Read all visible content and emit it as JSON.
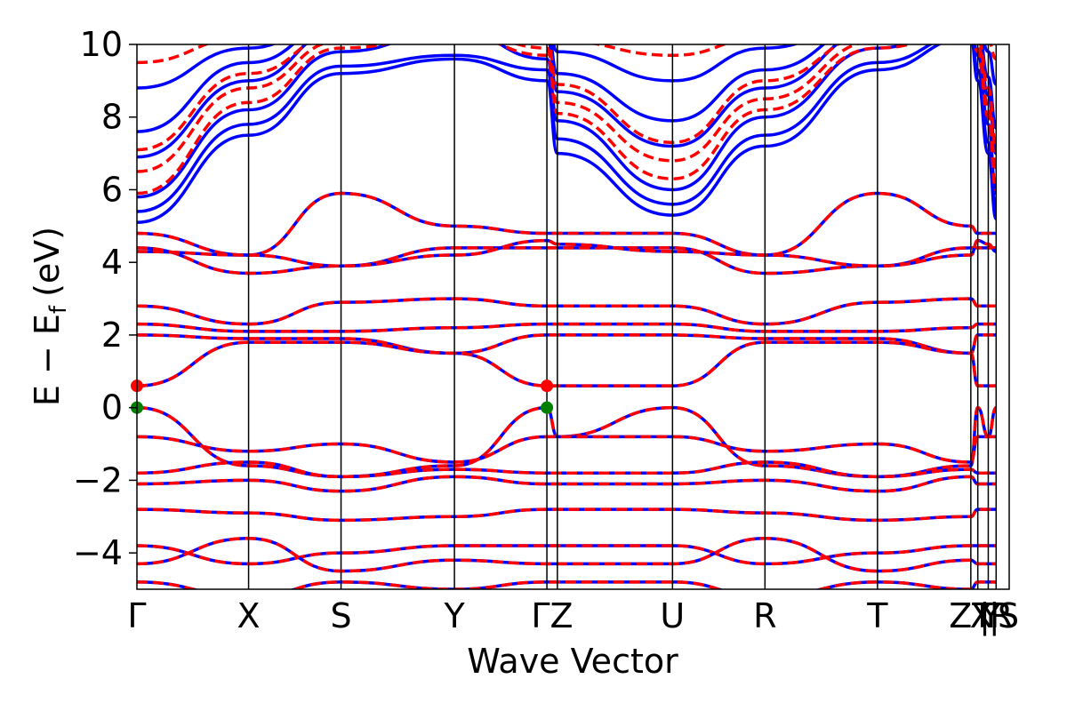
{
  "chart_data": {
    "type": "line",
    "xlabel": "Wave Vector",
    "ylabel": "E − E",
    "ylabel_subscript": "f",
    "ylabel_unit": "(eV)",
    "ylim": [
      -5,
      10
    ],
    "y_ticks": [
      -4,
      -2,
      0,
      2,
      4,
      6,
      8,
      10
    ],
    "y_tick_labels": [
      "−4",
      "−2",
      "0",
      "2",
      "4",
      "6",
      "8",
      "10"
    ],
    "k_path_ticks": [
      {
        "label": "Γ",
        "x": 0.0
      },
      {
        "label": "X",
        "x": 0.128
      },
      {
        "label": "S",
        "x": 0.234
      },
      {
        "label": "Y",
        "x": 0.364
      },
      {
        "label": "Γ",
        "x": 0.47
      },
      {
        "label": "Z",
        "x": 0.482
      },
      {
        "label": "U",
        "x": 0.614
      },
      {
        "label": "R",
        "x": 0.72
      },
      {
        "label": "T",
        "x": 0.849
      },
      {
        "label": "Z",
        "x": 0.956
      },
      {
        "label": "Y",
        "x": 0.956
      },
      {
        "label": "T",
        "x": 0.964
      },
      {
        "label": "U",
        "x": 0.964
      },
      {
        "label": "X",
        "x": 0.976
      },
      {
        "label": "S",
        "x": 0.976
      },
      {
        "label": "R",
        "x": 0.985
      },
      {
        "label": "S",
        "x": 0.985
      }
    ],
    "k_path_labels": [
      {
        "text": "Γ",
        "x": 0.0
      },
      {
        "text": "X",
        "x": 0.128
      },
      {
        "text": "S",
        "x": 0.234
      },
      {
        "text": "Y",
        "x": 0.364
      },
      {
        "text": "ΓZ",
        "x": 0.476
      },
      {
        "text": "U",
        "x": 0.614
      },
      {
        "text": "R",
        "x": 0.72
      },
      {
        "text": "T",
        "x": 0.849
      },
      {
        "text": "ZT",
        "x": 0.956
      },
      {
        "text": "X",
        "x": 0.968
      },
      {
        "text": "|",
        "x": 0.972
      },
      {
        "text": "Y",
        "x": 0.979
      },
      {
        "text": "|",
        "x": 0.983
      },
      {
        "text": "R",
        "x": 0.991
      },
      {
        "text": "S",
        "x": 0.999
      }
    ],
    "series_colors": {
      "solid": "#0000ff",
      "dashed": "#ff0000"
    },
    "markers": [
      {
        "x": 0.0,
        "y": 0.6,
        "color": "#ff0000"
      },
      {
        "x": 0.0,
        "y": 0.0,
        "color": "#008000"
      },
      {
        "x": 0.47,
        "y": 0.6,
        "color": "#ff0000"
      },
      {
        "x": 0.47,
        "y": 0.0,
        "color": "#008000"
      }
    ],
    "bands": [
      {
        "y": [
          5.1,
          7.5,
          9.2,
          9.6,
          9.0,
          7.0,
          5.3,
          7.2,
          9.3,
          10.2,
          9.0,
          7.0,
          5.2
        ],
        "style": "solid"
      },
      {
        "y": [
          5.4,
          7.8,
          9.4,
          9.7,
          9.3,
          7.4,
          5.6,
          7.5,
          9.5,
          10.3,
          9.3,
          7.3,
          5.5
        ],
        "style": "solid"
      },
      {
        "y": [
          5.8,
          8.2,
          9.8,
          10.4,
          9.6,
          7.9,
          6.0,
          8.0,
          9.9,
          10.6,
          9.7,
          7.8,
          5.9
        ],
        "style": "solid"
      },
      {
        "y": [
          6.9,
          9.0,
          10.4,
          10.6,
          10.2,
          8.7,
          7.2,
          8.8,
          10.4,
          10.7,
          10.2,
          8.6,
          7.0
        ],
        "style": "solid"
      },
      {
        "y": [
          7.6,
          9.5,
          10.6,
          10.8,
          10.5,
          9.2,
          7.9,
          9.3,
          10.6,
          10.9,
          10.5,
          9.1,
          7.7
        ],
        "style": "solid"
      },
      {
        "y": [
          8.8,
          9.9,
          10.8,
          11.0,
          10.7,
          9.8,
          9.0,
          9.9,
          10.8,
          11.1,
          10.7,
          9.8,
          8.9
        ],
        "style": "solid"
      },
      {
        "y": [
          5.9,
          8.4,
          9.9,
          10.3,
          9.7,
          8.1,
          6.3,
          8.2,
          9.9,
          10.4,
          9.8,
          8.0,
          6.0
        ],
        "style": "dashed"
      },
      {
        "y": [
          6.5,
          8.8,
          10.1,
          10.5,
          9.9,
          8.4,
          6.8,
          8.5,
          10.1,
          10.6,
          10.0,
          8.3,
          6.6
        ],
        "style": "dashed"
      },
      {
        "y": [
          7.1,
          9.2,
          10.3,
          10.6,
          10.1,
          8.9,
          7.3,
          9.0,
          10.3,
          10.7,
          10.2,
          8.8,
          7.2
        ],
        "style": "dashed"
      },
      {
        "y": [
          9.5,
          10.2,
          10.9,
          11.1,
          10.8,
          10.1,
          9.7,
          10.2,
          10.9,
          11.2,
          10.8,
          10.1,
          9.6
        ],
        "style": "dashed"
      },
      {
        "y": [
          4.8,
          4.2,
          5.9,
          5.0,
          4.8,
          4.8,
          4.8,
          4.2,
          5.9,
          5.0,
          4.8,
          4.8,
          4.8
        ],
        "style": "both"
      },
      {
        "y": [
          4.4,
          3.7,
          3.9,
          4.4,
          4.4,
          4.4,
          4.4,
          3.7,
          3.9,
          4.4,
          4.4,
          4.4,
          4.4
        ],
        "style": "both"
      },
      {
        "y": [
          4.3,
          4.2,
          3.9,
          4.2,
          4.6,
          4.5,
          4.3,
          4.2,
          3.9,
          4.2,
          4.6,
          4.5,
          4.3
        ],
        "style": "both"
      },
      {
        "y": [
          2.8,
          2.3,
          2.9,
          3.0,
          2.8,
          2.8,
          2.8,
          2.3,
          2.9,
          3.0,
          2.8,
          2.8,
          2.8
        ],
        "style": "both"
      },
      {
        "y": [
          2.3,
          2.1,
          2.1,
          2.2,
          2.3,
          2.3,
          2.3,
          2.1,
          2.1,
          2.2,
          2.3,
          2.3,
          2.3
        ],
        "style": "both"
      },
      {
        "y": [
          2.0,
          1.9,
          1.9,
          1.5,
          2.0,
          2.0,
          2.0,
          1.9,
          1.9,
          1.5,
          2.0,
          2.0,
          2.0
        ],
        "style": "both"
      },
      {
        "y": [
          0.6,
          1.8,
          1.8,
          1.5,
          0.6,
          0.6,
          0.6,
          1.8,
          1.8,
          1.5,
          0.6,
          0.6,
          0.6
        ],
        "style": "both"
      },
      {
        "y": [
          0.0,
          -1.6,
          -1.9,
          -1.6,
          0.0,
          -0.8,
          0.0,
          -1.6,
          -1.9,
          -1.6,
          0.0,
          -0.8,
          0.0
        ],
        "style": "both"
      },
      {
        "y": [
          -0.8,
          -1.2,
          -1.0,
          -1.5,
          -0.8,
          -0.8,
          -0.8,
          -1.2,
          -1.0,
          -1.5,
          -0.8,
          -0.8,
          -0.8
        ],
        "style": "both"
      },
      {
        "y": [
          -1.8,
          -1.5,
          -1.9,
          -1.7,
          -1.8,
          -1.8,
          -1.8,
          -1.5,
          -1.9,
          -1.7,
          -1.8,
          -1.8,
          -1.8
        ],
        "style": "both"
      },
      {
        "y": [
          -2.1,
          -2.0,
          -2.3,
          -1.9,
          -2.1,
          -2.1,
          -2.1,
          -2.0,
          -2.3,
          -1.9,
          -2.1,
          -2.1,
          -2.1
        ],
        "style": "both"
      },
      {
        "y": [
          -2.8,
          -2.9,
          -3.1,
          -3.0,
          -2.8,
          -2.8,
          -2.8,
          -2.9,
          -3.1,
          -3.0,
          -2.8,
          -2.8,
          -2.8
        ],
        "style": "both"
      },
      {
        "y": [
          -3.8,
          -4.3,
          -4.0,
          -3.8,
          -3.8,
          -3.8,
          -3.8,
          -4.3,
          -4.0,
          -3.8,
          -3.8,
          -3.8,
          -3.8
        ],
        "style": "both"
      },
      {
        "y": [
          -4.3,
          -3.6,
          -4.5,
          -4.2,
          -4.3,
          -4.3,
          -4.3,
          -3.6,
          -4.5,
          -4.2,
          -4.3,
          -4.3,
          -4.3
        ],
        "style": "both"
      },
      {
        "y": [
          -4.8,
          -5.2,
          -4.8,
          -5.0,
          -4.8,
          -4.8,
          -4.8,
          -5.2,
          -4.8,
          -5.0,
          -4.8,
          -4.8,
          -4.8
        ],
        "style": "both"
      }
    ]
  }
}
